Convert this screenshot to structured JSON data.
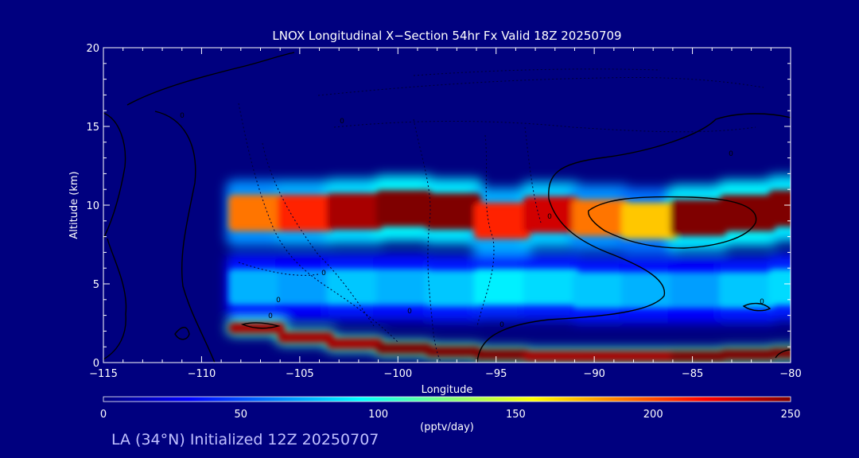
{
  "chart_data": {
    "type": "heatmap",
    "title": "LNOX Longitudinal X−Section 54hr  Fx Valid 18Z 20250709",
    "xlabel": "Longitude",
    "ylabel": "Altitude (km)",
    "xlim": [
      -115,
      -80
    ],
    "ylim": [
      0,
      20
    ],
    "xticks": [
      -115,
      -110,
      -105,
      -100,
      -95,
      -90,
      -85,
      -80
    ],
    "xtick_labels": [
      "−115",
      "−110",
      "−105",
      "−100",
      "−95",
      "−90",
      "−85",
      "−80"
    ],
    "yticks": [
      0,
      5,
      10,
      15,
      20
    ],
    "ytick_labels": [
      "0",
      "5",
      "10",
      "15",
      "20"
    ],
    "colorbar": {
      "min": 0,
      "max": 250,
      "ticks": [
        0,
        50,
        100,
        150,
        200,
        250
      ],
      "tick_labels": [
        "0",
        "50",
        "100",
        "150",
        "200",
        "250"
      ],
      "label": "(pptv/day)",
      "colors": [
        "#00007f",
        "#0000ff",
        "#007fff",
        "#00ffff",
        "#7fff7f",
        "#ffff00",
        "#ff7f00",
        "#ff0000",
        "#7f0000"
      ]
    },
    "field": {
      "units": "pptv/day",
      "x": [
        -107.5,
        -105,
        -102.5,
        -100,
        -97.5,
        -95,
        -92.5,
        -90,
        -87.5,
        -85,
        -82.5,
        -80
      ],
      "upper_layer_altitude_km": [
        9.5,
        9.5,
        9.6,
        9.8,
        9.6,
        9.0,
        9.4,
        9.2,
        9.0,
        9.2,
        9.5,
        9.8
      ],
      "upper_layer_peak": [
        190,
        210,
        240,
        260,
        250,
        210,
        230,
        190,
        170,
        250,
        260,
        250
      ],
      "mid_layer_altitude_km": [
        4.8,
        4.8,
        4.8,
        4.8,
        4.7,
        4.8,
        4.8,
        4.6,
        4.6,
        4.6,
        4.6,
        4.8
      ],
      "mid_layer_peak": [
        75,
        70,
        80,
        75,
        80,
        90,
        85,
        80,
        75,
        70,
        80,
        85
      ],
      "surface_layer_altitude_km": [
        2.2,
        1.6,
        1.2,
        0.9,
        0.7,
        0.5,
        0.4,
        0.4,
        0.4,
        0.4,
        0.5,
        0.6
      ],
      "surface_layer_peak": [
        240,
        240,
        240,
        250,
        250,
        250,
        240,
        240,
        240,
        250,
        250,
        250
      ]
    },
    "contours": {
      "zero_label": "0",
      "labels_shown": 10
    }
  },
  "footer": {
    "text": "LA (34°N) Initialized 12Z 20250707"
  }
}
